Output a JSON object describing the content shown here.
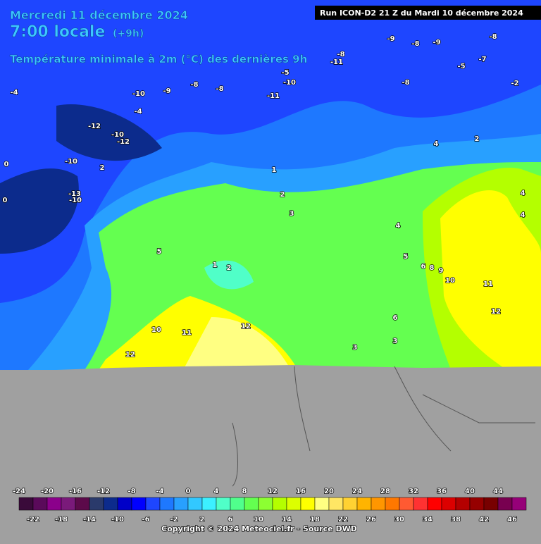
{
  "header": {
    "date": "Mercredi 11 décembre 2024",
    "time": "7:00 locale",
    "offset": "(+9h)",
    "variable": "Température minimale à 2m (°C) des dernières 9h",
    "run": "Run ICON-D2 21 Z du Mardi 10 décembre 2024"
  },
  "map_labels": [
    -8,
    -9,
    -8,
    -9,
    -8,
    -11,
    -7,
    -5,
    -5,
    -10,
    -8,
    -2,
    -4,
    -11,
    -9,
    -8,
    -8,
    -10,
    -4,
    -12,
    -10,
    -12,
    4,
    2,
    1,
    2,
    3,
    4,
    5,
    5,
    6,
    8,
    9,
    10,
    11,
    12,
    10,
    11,
    12,
    12,
    2,
    1,
    2,
    -10,
    -13,
    -10,
    0,
    0,
    6,
    3,
    4,
    4,
    3
  ],
  "legend": {
    "top_labels": [
      -24,
      -20,
      -16,
      -12,
      -8,
      -4,
      0,
      4,
      8,
      12,
      16,
      20,
      24,
      28,
      32,
      36,
      40,
      44
    ],
    "bottom_labels": [
      -22,
      -18,
      -14,
      -10,
      -6,
      -2,
      2,
      6,
      10,
      14,
      18,
      22,
      26,
      30,
      34,
      38,
      42,
      46
    ],
    "colors": [
      "#3a0a3a",
      "#5a0a5a",
      "#8b008b",
      "#7a1a7a",
      "#5c0a4a",
      "#2a3a6b",
      "#0c2b8c",
      "#0000c8",
      "#0000ff",
      "#1e46ff",
      "#1e78ff",
      "#28a0ff",
      "#32c8ff",
      "#3cf0ff",
      "#50ffc8",
      "#50ff8c",
      "#64ff50",
      "#8cff32",
      "#b4ff00",
      "#dcff00",
      "#ffff00",
      "#ffff82",
      "#ffe664",
      "#ffd232",
      "#ffb400",
      "#ff9600",
      "#ff7800",
      "#ff5a32",
      "#ff3232",
      "#ff0000",
      "#dc0000",
      "#b40000",
      "#960000",
      "#780000",
      "#780050",
      "#960078",
      "#b400a0",
      "#dc00dc",
      "#ff00ff",
      "#ff50ff",
      "#ff8cff"
    ]
  },
  "footer": "Copyright © 2024 Meteociel.fr - Source DWD"
}
